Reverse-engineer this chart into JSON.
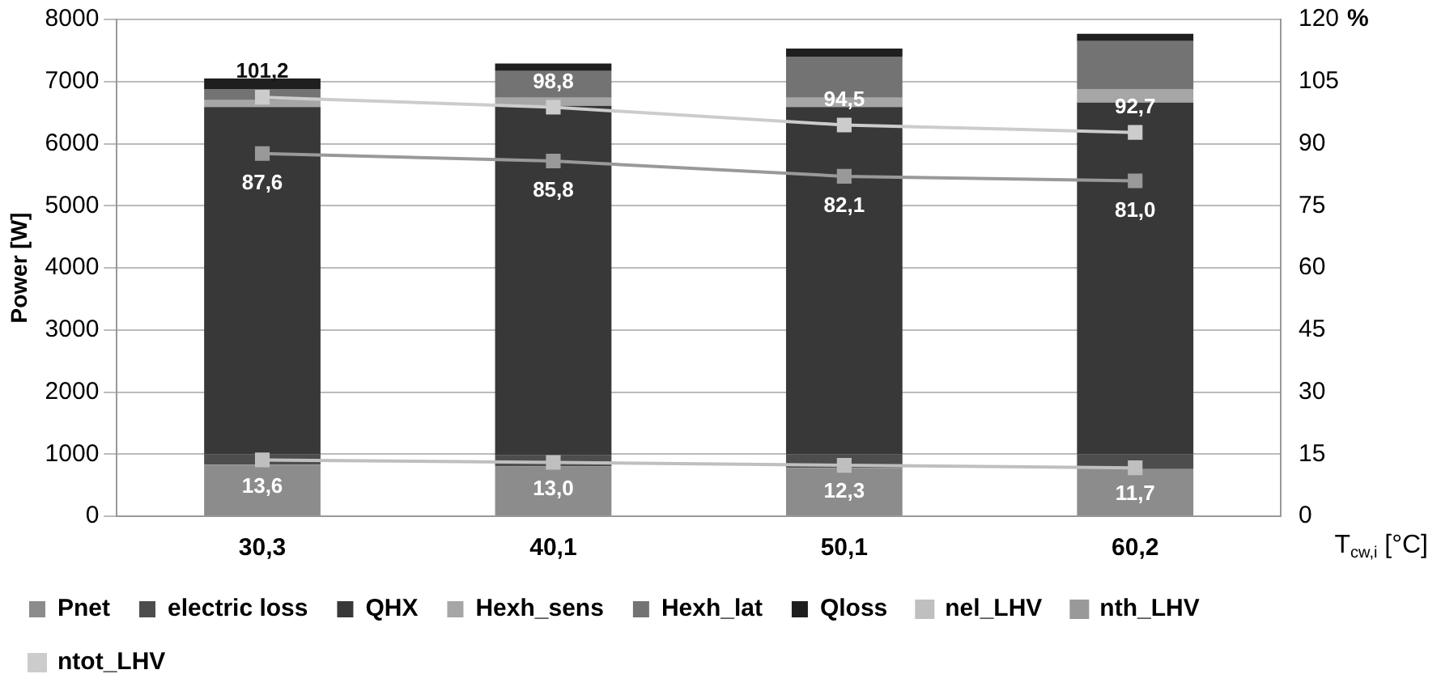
{
  "chart_data": {
    "type": "bar",
    "stacked": true,
    "ylabel": "Power [W]",
    "y2label": "%",
    "xlabel": "T$_{cw,i}$ [°C]",
    "categories": [
      "30,3",
      "40,1",
      "50,1",
      "60,2"
    ],
    "ylim": [
      0,
      8000
    ],
    "yticks": [
      0,
      1000,
      2000,
      3000,
      4000,
      5000,
      6000,
      7000,
      8000
    ],
    "y2lim": [
      0,
      120
    ],
    "y2ticks": [
      0,
      15,
      30,
      45,
      60,
      75,
      90,
      105,
      120
    ],
    "grid": "y",
    "legend": "bottom",
    "marker": "square",
    "series": [
      {
        "name": "Pnet",
        "color": "#8c8c8c",
        "values": [
          830,
          800,
          780,
          760
        ]
      },
      {
        "name": "electric loss",
        "color": "#4d4d4d",
        "values": [
          170,
          180,
          220,
          240
        ]
      },
      {
        "name": "QHX",
        "color": "#383838",
        "values": [
          5590,
          5630,
          5590,
          5660
        ]
      },
      {
        "name": "Hexh_sens",
        "color": "#a6a6a6",
        "values": [
          110,
          130,
          150,
          220
        ]
      },
      {
        "name": "Hexh_lat",
        "color": "#737373",
        "values": [
          180,
          430,
          660,
          770
        ]
      },
      {
        "name": "Qloss",
        "color": "#1f1f1f",
        "values": [
          170,
          120,
          130,
          120
        ]
      },
      {
        "name": "nel_LHV",
        "type": "line",
        "axis": "y2",
        "color": "#bfbfbf",
        "values": [
          13.6,
          13.0,
          12.3,
          11.7
        ],
        "value_labels": [
          "13,6",
          "13,0",
          "12,3",
          "11,7"
        ]
      },
      {
        "name": "nth_LHV",
        "type": "line",
        "axis": "y2",
        "color": "#999999",
        "values": [
          87.6,
          85.8,
          82.1,
          81.0
        ],
        "value_labels": [
          "87,6",
          "85,8",
          "82,1",
          "81,0"
        ]
      },
      {
        "name": "ntot_LHV",
        "type": "line",
        "axis": "y2",
        "color": "#cccccc",
        "values": [
          101.2,
          98.8,
          94.5,
          92.7
        ],
        "value_labels": [
          "101,2",
          "98,8",
          "94,5",
          "92,7"
        ]
      }
    ]
  }
}
